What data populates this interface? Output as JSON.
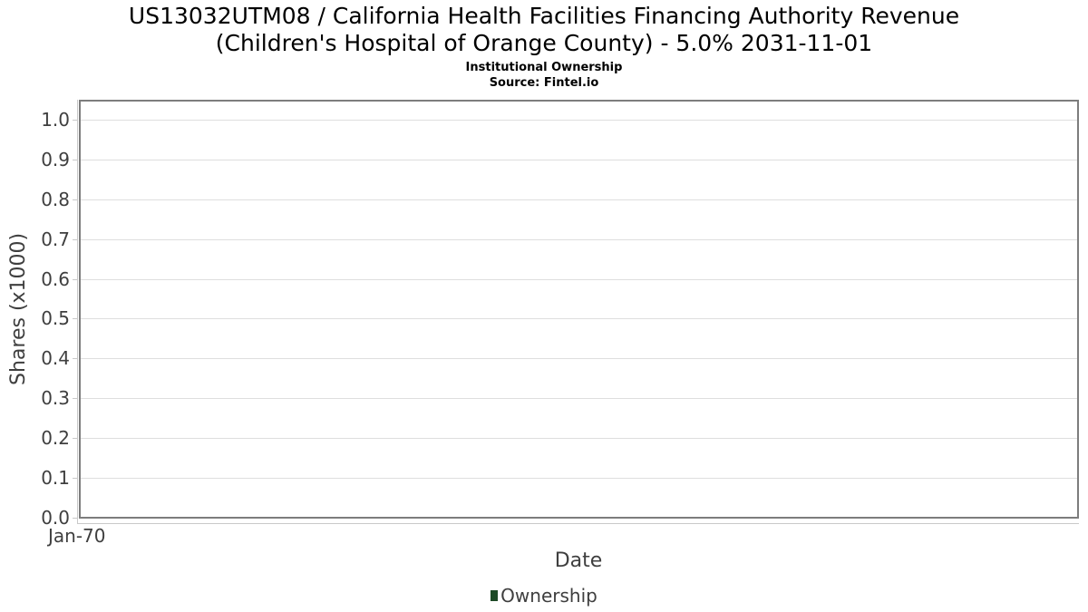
{
  "header": {
    "title_line1": "US13032UTM08 / California Health Facilities Financing Authority Revenue",
    "title_line2": "(Children's Hospital of Orange County) - 5.0% 2031-11-01",
    "subtitle": "Institutional Ownership",
    "source": "Source: Fintel.io"
  },
  "chart_data": {
    "type": "line",
    "title": "US13032UTM08 / California Health Facilities Financing Authority Revenue (Children's Hospital of Orange County) - 5.0% 2031-11-01",
    "subtitle": "Institutional Ownership",
    "source": "Source: Fintel.io",
    "xlabel": "Date",
    "ylabel": "Shares (x1000)",
    "x_tick_labels": [
      "Jan-70"
    ],
    "y_tick_labels": [
      "0.0",
      "0.1",
      "0.2",
      "0.3",
      "0.4",
      "0.5",
      "0.6",
      "0.7",
      "0.8",
      "0.9",
      "1.0"
    ],
    "y_tick_values": [
      0.0,
      0.1,
      0.2,
      0.3,
      0.4,
      0.5,
      0.6,
      0.7,
      0.8,
      0.9,
      1.0
    ],
    "ylim": [
      0.0,
      1.05
    ],
    "grid": true,
    "legend": {
      "position": "bottom-center",
      "entries": [
        {
          "label": "Ownership",
          "color": "#1d4a26"
        }
      ]
    },
    "series": [
      {
        "name": "Ownership",
        "color": "#1d4a26",
        "x": [],
        "y": []
      }
    ]
  },
  "colors": {
    "title_text": "#000000",
    "axis_text": "#3f3f3f",
    "grid_line": "#dedede",
    "frame_border": "#7d7d7d",
    "axis_line": "#c9c9c9",
    "legend_marker": "#1d4a26",
    "background": "#ffffff"
  }
}
